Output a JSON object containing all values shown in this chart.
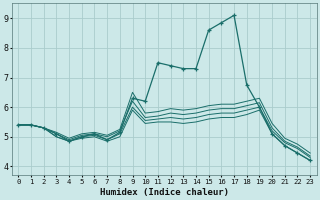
{
  "title": "",
  "xlabel": "Humidex (Indice chaleur)",
  "bg_color": "#cce8e8",
  "line_color": "#1a6e6a",
  "grid_color": "#aacccc",
  "xlim": [
    -0.5,
    23.5
  ],
  "ylim": [
    3.7,
    9.5
  ],
  "xticks": [
    0,
    1,
    2,
    3,
    4,
    5,
    6,
    7,
    8,
    9,
    10,
    11,
    12,
    13,
    14,
    15,
    16,
    17,
    18,
    19,
    20,
    21,
    22,
    23
  ],
  "yticks": [
    4,
    5,
    6,
    7,
    8,
    9
  ],
  "series": [
    {
      "x": [
        0,
        1,
        2,
        3,
        4,
        5,
        6,
        7,
        8,
        9,
        10,
        11,
        12,
        13,
        14,
        15,
        16,
        17,
        18,
        19,
        20,
        21,
        22,
        23
      ],
      "y": [
        5.4,
        5.4,
        5.3,
        5.0,
        4.85,
        4.95,
        5.0,
        4.85,
        5.0,
        5.9,
        5.45,
        5.5,
        5.5,
        5.45,
        5.5,
        5.6,
        5.65,
        5.65,
        5.75,
        5.9,
        5.1,
        4.7,
        4.45,
        4.2
      ],
      "has_markers": false,
      "linestyle": "-"
    },
    {
      "x": [
        0,
        1,
        2,
        3,
        4,
        5,
        6,
        7,
        8,
        9,
        10,
        11,
        12,
        13,
        14,
        15,
        16,
        17,
        18,
        19,
        20,
        21,
        22,
        23
      ],
      "y": [
        5.4,
        5.4,
        5.3,
        5.0,
        4.85,
        5.0,
        5.05,
        4.9,
        5.1,
        6.0,
        5.55,
        5.6,
        5.65,
        5.6,
        5.65,
        5.75,
        5.8,
        5.8,
        5.9,
        6.0,
        5.2,
        4.8,
        4.6,
        4.3
      ],
      "has_markers": false,
      "linestyle": "-"
    },
    {
      "x": [
        0,
        1,
        2,
        3,
        4,
        5,
        6,
        7,
        8,
        9,
        10,
        11,
        12,
        13,
        14,
        15,
        16,
        17,
        18,
        19,
        20,
        21,
        22,
        23
      ],
      "y": [
        5.4,
        5.4,
        5.3,
        5.1,
        4.9,
        5.05,
        5.1,
        5.0,
        5.2,
        6.2,
        5.65,
        5.7,
        5.8,
        5.75,
        5.8,
        5.9,
        5.95,
        5.95,
        6.05,
        6.15,
        5.3,
        4.85,
        4.65,
        4.35
      ],
      "has_markers": false,
      "linestyle": "-"
    },
    {
      "x": [
        0,
        1,
        2,
        3,
        4,
        5,
        6,
        7,
        8,
        9,
        10,
        11,
        12,
        13,
        14,
        15,
        16,
        17,
        18,
        19,
        20,
        21,
        22,
        23
      ],
      "y": [
        5.4,
        5.4,
        5.3,
        5.15,
        4.95,
        5.1,
        5.15,
        5.05,
        5.25,
        6.5,
        5.8,
        5.85,
        5.95,
        5.9,
        5.95,
        6.05,
        6.1,
        6.1,
        6.2,
        6.3,
        5.45,
        4.95,
        4.75,
        4.45
      ],
      "has_markers": false,
      "linestyle": "-"
    },
    {
      "x": [
        0,
        1,
        2,
        3,
        4,
        5,
        6,
        7,
        8,
        9,
        10,
        11,
        12,
        13,
        14,
        15,
        16,
        17,
        18,
        19,
        20,
        21,
        22,
        23
      ],
      "y": [
        5.4,
        5.4,
        5.3,
        5.1,
        4.85,
        5.0,
        5.1,
        4.9,
        5.15,
        6.3,
        6.2,
        7.5,
        7.4,
        7.3,
        7.3,
        8.6,
        8.85,
        9.1,
        6.75,
        6.0,
        5.1,
        4.7,
        4.45,
        4.2
      ],
      "has_markers": true,
      "linestyle": "-"
    }
  ]
}
